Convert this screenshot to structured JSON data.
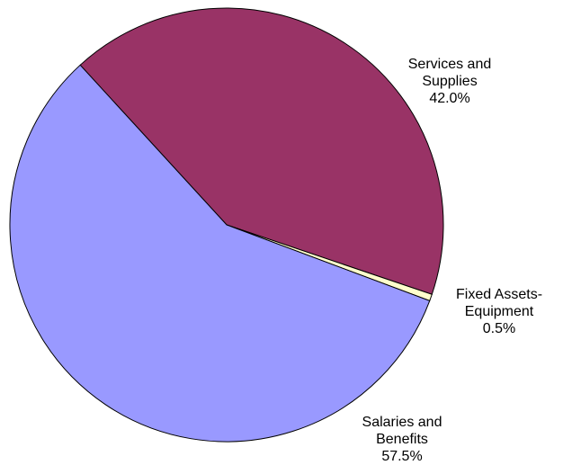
{
  "chart_data": {
    "type": "pie",
    "categories": [
      "Services and Supplies",
      "Fixed Assets-Equipment",
      "Salaries and Benefits"
    ],
    "values": [
      42.0,
      0.5,
      57.5
    ],
    "value_labels": [
      "42.0%",
      "0.5%",
      "57.5%"
    ],
    "colors": [
      "#993366",
      "#ffffcc",
      "#9999ff"
    ]
  }
}
